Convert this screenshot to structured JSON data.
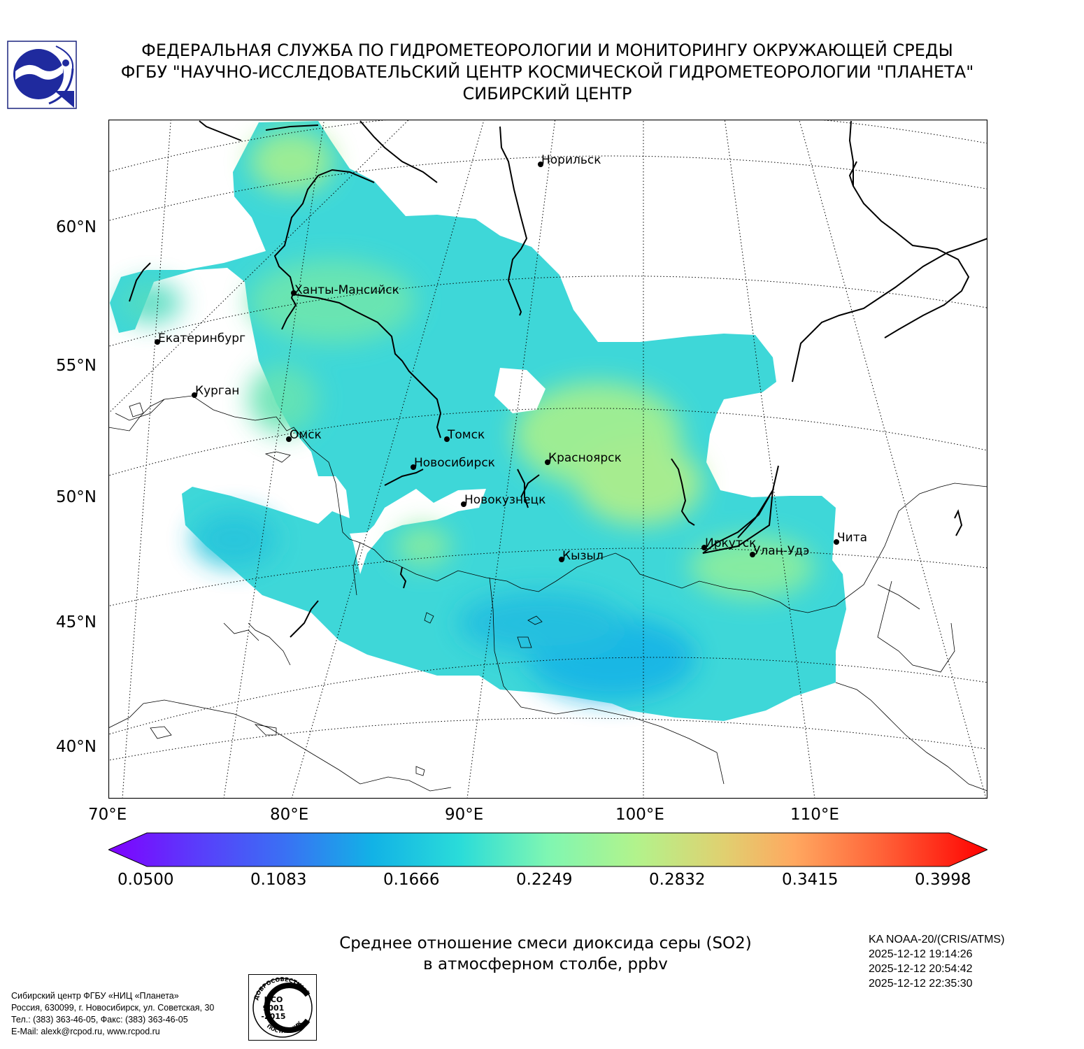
{
  "header": {
    "line1": "ФЕДЕРАЛЬНАЯ СЛУЖБА ПО ГИДРОМЕТЕОРОЛОГИИ И МОНИТОРИНГУ ОКРУЖАЮЩЕЙ СРЕДЫ",
    "line2": "ФГБУ \"НАУЧНО-ИССЛЕДОВАТЕЛЬСКИЙ ЦЕНТР КОСМИЧЕСКОЙ ГИДРОМЕТЕОРОЛОГИИ \"ПЛАНЕТА\"",
    "line3": "СИБИРСКИЙ ЦЕНТР"
  },
  "map": {
    "lat_labels": [
      "60°N",
      "55°N",
      "50°N",
      "45°N",
      "40°N"
    ],
    "lon_labels": [
      "70°E",
      "80°E",
      "90°E",
      "100°E",
      "110°E"
    ],
    "cities": [
      "Норильск",
      "Ханты-Мансийск",
      "Екатеринбург",
      "Курган",
      "Омск",
      "Томск",
      "Новосибирск",
      "Красноярск",
      "Новокузнецк",
      "Кызыл",
      "Иркутск",
      "Улан-Удэ",
      "Чита"
    ],
    "colors": {
      "land_border": "#000000",
      "grid": "#000000"
    }
  },
  "colorbar": {
    "ticks": [
      "0.0500",
      "0.1083",
      "0.1666",
      "0.2249",
      "0.2832",
      "0.3415",
      "0.3998"
    ],
    "min": 0.05,
    "max": 0.3998,
    "colormap": "rainbow"
  },
  "title": {
    "line1": "Среднее отношение смеси диоксида серы (SO2)",
    "line2": "в атмосферном столбе, ppbv"
  },
  "satellite": {
    "name": "KA NOAA-20/(CRIS/ATMS)",
    "times": [
      "2025-12-12 19:14:26",
      "2025-12-12 20:54:42",
      "2025-12-12 22:35:30"
    ]
  },
  "footer": {
    "contact": [
      "Сибирский центр ФГБУ «НИЦ «Планета»",
      "Россия, 630099, г. Новосибирск, ул. Советская, 30",
      "Тел.: (383) 363-46-05, Факс: (383) 363-46-05",
      "E-Mail: alexk@rcpod.ru, www.rcpod.ru"
    ],
    "iso_badge": {
      "top": "ДОБРОСОВЕСТНЫЙ",
      "center1": "ИСО",
      "center2": "9001",
      "center3": "-2015",
      "bottom": "ПОСТАВЩИК"
    }
  }
}
